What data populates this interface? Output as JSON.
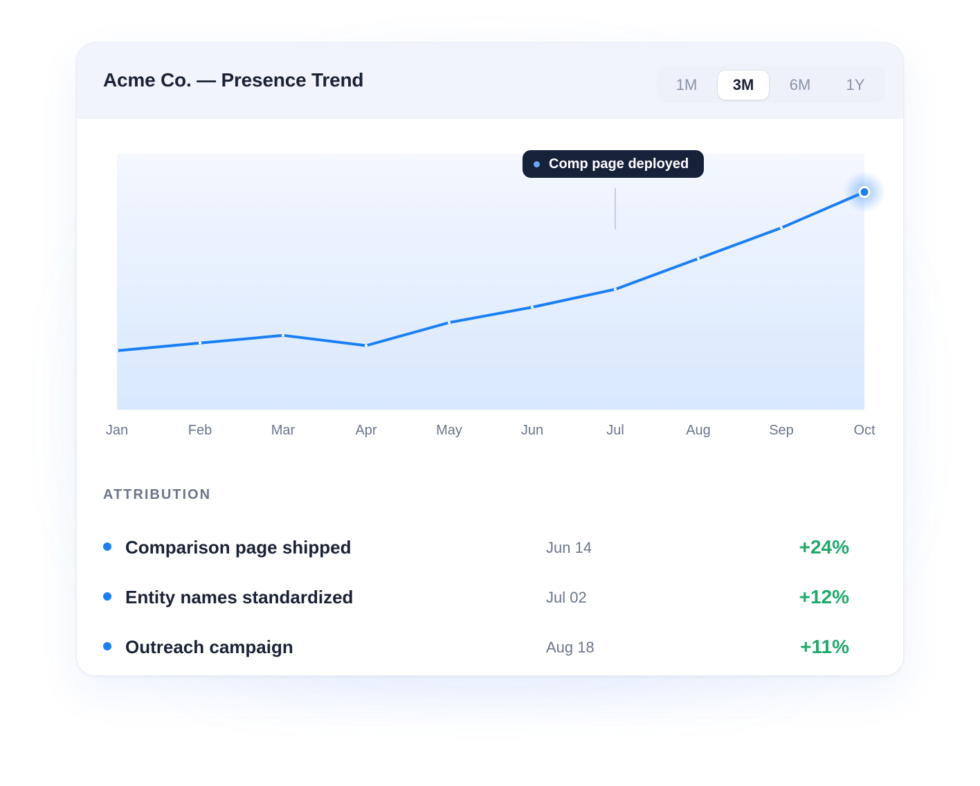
{
  "card": {
    "title": "Acme Co. — Presence Trend",
    "ranges": [
      "1M",
      "3M",
      "6M",
      "1Y"
    ],
    "active_range": "3M"
  },
  "chart_data": {
    "type": "area",
    "categories": [
      "Jan",
      "Feb",
      "Mar",
      "Apr",
      "May",
      "Jun",
      "Jul",
      "Aug",
      "Sep",
      "Oct"
    ],
    "series": [
      {
        "values": [
          23,
          26,
          29,
          25,
          34,
          40,
          47,
          59,
          71,
          85
        ]
      }
    ],
    "ylim": [
      0,
      100
    ],
    "grid": false,
    "legend": "none",
    "annotation": {
      "label": "Comp page deployed",
      "category": "Jul"
    },
    "colors": {
      "line": "#1a7ff5",
      "area_top": "#f4f7fe",
      "area_bottom": "#d8e8fd",
      "annotation_bg": "#16213a"
    }
  },
  "attribution": {
    "label": "ATTRIBUTION",
    "items": [
      {
        "name": "Comparison page shipped",
        "date": "Jun 14",
        "change": "+24%"
      },
      {
        "name": "Entity names standardized",
        "date": "Jul 02",
        "change": "+12%"
      },
      {
        "name": "Outreach campaign",
        "date": "Aug 18",
        "change": "+11%"
      }
    ]
  },
  "colors": {
    "accent": "#1a7ff5",
    "positive": "#1faa6a",
    "text": "#1a2236",
    "muted": "#6b7589"
  }
}
